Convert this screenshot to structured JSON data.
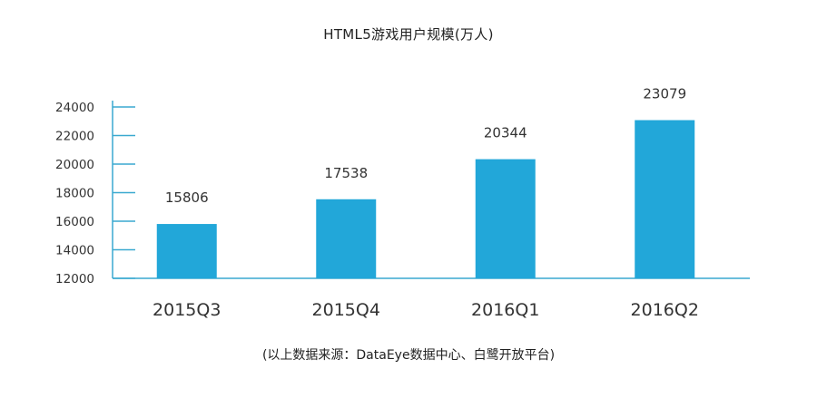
{
  "title": "HTML5游戏用户规模(万人)",
  "source": "(以上数据来源：DataEye数据中心、白鹭开放平台)",
  "colors": {
    "bar": "#22a7d9",
    "axis": "#3aa9d0"
  },
  "chart_data": {
    "type": "bar",
    "title": "HTML5游戏用户规模(万人)",
    "xlabel": "",
    "ylabel": "",
    "categories": [
      "2015Q3",
      "2015Q4",
      "2016Q1",
      "2016Q2"
    ],
    "values": [
      15806,
      17538,
      20344,
      23079
    ],
    "data_labels": [
      "15806",
      "17538",
      "20344",
      "23079"
    ],
    "ylim": [
      12000,
      24000
    ],
    "yticks": [
      12000,
      14000,
      16000,
      18000,
      20000,
      22000,
      24000
    ],
    "ytick_labels": [
      "12000",
      "14000",
      "16000",
      "18000",
      "20000",
      "22000",
      "24000"
    ],
    "grid": false,
    "legend": "none"
  }
}
